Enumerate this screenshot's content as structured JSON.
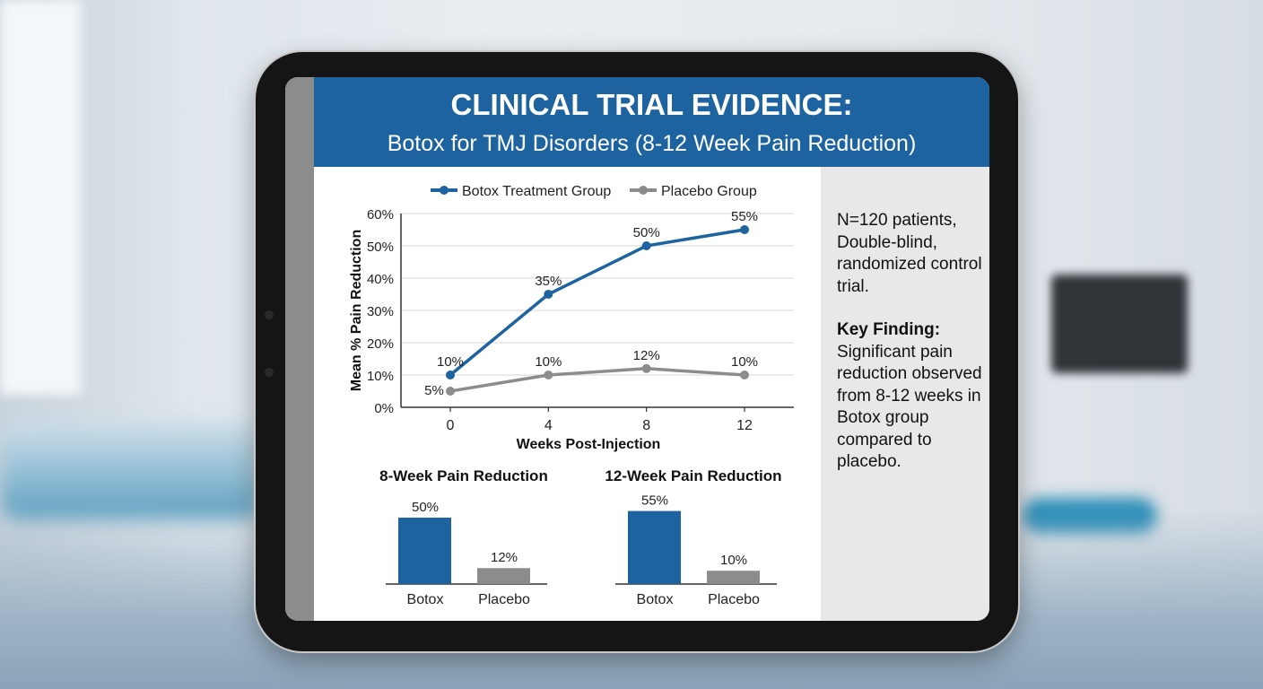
{
  "header": {
    "title": "CLINICAL TRIAL EVIDENCE:",
    "subtitle": "Botox for TMJ Disorders (8-12 Week Pain Reduction)"
  },
  "colors": {
    "botox": "#1d63a0",
    "placebo": "#8c8c8c",
    "header": "#1d63a0"
  },
  "side_panel": {
    "study_info": "N=120 patients, Double-blind, randomized control trial.",
    "finding_title": "Key Finding:",
    "finding_text": "Significant pain reduction observed from 8-12 weeks in Botox group compared to placebo."
  },
  "chart_data": [
    {
      "type": "line",
      "xlabel": "Weeks Post-Injection",
      "ylabel": "Mean % Pain Reduction",
      "x": [
        0,
        4,
        8,
        12
      ],
      "x_ticks": [
        "0",
        "4",
        "8",
        "12"
      ],
      "ylim": [
        0,
        60
      ],
      "y_ticks": [
        "0%",
        "10%",
        "20%",
        "30%",
        "40%",
        "50%",
        "60%"
      ],
      "grid": true,
      "legend": "top",
      "series": [
        {
          "name": "Botox Treatment Group",
          "values": [
            10,
            35,
            50,
            55
          ],
          "labels": [
            "10%",
            "35%",
            "50%",
            "55%"
          ]
        },
        {
          "name": "Placebo Group",
          "values": [
            5,
            10,
            12,
            10
          ],
          "labels": [
            "5%",
            "10%",
            "12%",
            "10%"
          ]
        }
      ]
    },
    {
      "type": "bar",
      "title": "8-Week Pain Reduction",
      "categories": [
        "Botox",
        "Placebo"
      ],
      "values": [
        50,
        12
      ],
      "labels": [
        "50%",
        "12%"
      ]
    },
    {
      "type": "bar",
      "title": "12-Week Pain Reduction",
      "categories": [
        "Botox",
        "Placebo"
      ],
      "values": [
        55,
        10
      ],
      "labels": [
        "55%",
        "10%"
      ]
    }
  ]
}
